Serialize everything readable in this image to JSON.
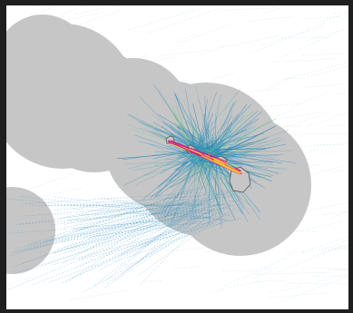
{
  "map": {
    "background_color": "#ffffff",
    "frame_color": "#1f1f1f",
    "coverage_color": "#c6c6c6",
    "land_color": "#c6c6c6",
    "coastline_color": "#555555",
    "track_colors": [
      "#1f78b4",
      "#2b8cbe",
      "#41a6c4",
      "#a6cee3",
      "#7fc97f",
      "#ffd92f",
      "#e7298a",
      "#c51b8a"
    ],
    "layers": [
      "coverage-zones",
      "track-lines",
      "island-outlines",
      "hub-tracks"
    ]
  }
}
